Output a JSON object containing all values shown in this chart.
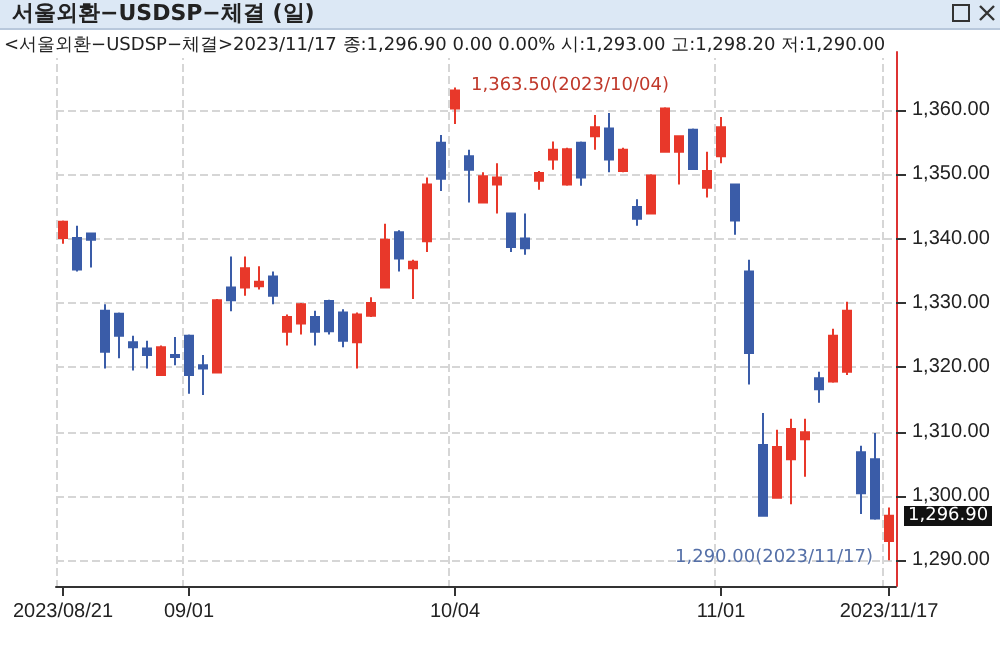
{
  "chart_data": {
    "type": "candlestick",
    "title": "서울외환−USDSP−체결 (일)",
    "subtitle": "<서울외환−USDSP−체결>2023/11/17 종:1,296.90 0.00 0.00% 시:1,293.00 고:1,298.20 저:1,290.00",
    "categories": [
      "2023/08/21",
      null,
      null,
      null,
      null,
      null,
      null,
      null,
      null,
      "09/01",
      null,
      null,
      null,
      null,
      null,
      null,
      null,
      null,
      null,
      null,
      null,
      null,
      null,
      null,
      null,
      null,
      null,
      null,
      "10/04",
      null,
      null,
      null,
      null,
      null,
      null,
      null,
      null,
      null,
      null,
      null,
      null,
      null,
      null,
      null,
      null,
      null,
      null,
      "11/01",
      null,
      null,
      null,
      null,
      null,
      null,
      null,
      null,
      null,
      null,
      null,
      "2023/11/17"
    ],
    "ohlc": [
      [
        1340.1,
        1342.8,
        1339.2,
        1342.6
      ],
      [
        1340.1,
        1342.0,
        1334.9,
        1335.2
      ],
      [
        1340.8,
        1340.8,
        1335.5,
        1339.8
      ],
      [
        1328.8,
        1329.8,
        1319.8,
        1322.4
      ],
      [
        1328.3,
        1328.5,
        1321.4,
        1324.9
      ],
      [
        1323.9,
        1324.9,
        1319.5,
        1323.1
      ],
      [
        1322.9,
        1324.1,
        1319.8,
        1321.9
      ],
      [
        1318.8,
        1323.4,
        1318.8,
        1323.1
      ],
      [
        1321.9,
        1324.7,
        1320.3,
        1321.6
      ],
      [
        1324.9,
        1325.1,
        1315.9,
        1318.8
      ],
      [
        1320.3,
        1321.9,
        1315.7,
        1319.8
      ],
      [
        1319.2,
        1330.6,
        1319.2,
        1330.4
      ],
      [
        1332.4,
        1337.2,
        1328.7,
        1330.4
      ],
      [
        1332.4,
        1337.2,
        1331.1,
        1335.4
      ],
      [
        1332.6,
        1335.7,
        1332.1,
        1333.3
      ],
      [
        1334.1,
        1334.9,
        1329.8,
        1331.1
      ],
      [
        1325.5,
        1328.2,
        1323.4,
        1327.8
      ],
      [
        1326.8,
        1330.0,
        1325.1,
        1329.8
      ],
      [
        1327.8,
        1328.8,
        1323.4,
        1325.5
      ],
      [
        1330.3,
        1330.5,
        1325.1,
        1325.6
      ],
      [
        1328.5,
        1329.0,
        1323.1,
        1324.1
      ],
      [
        1323.9,
        1328.5,
        1319.8,
        1328.2
      ],
      [
        1328.0,
        1330.9,
        1327.8,
        1330.0
      ],
      [
        1332.4,
        1342.3,
        1332.4,
        1339.8
      ],
      [
        1341.0,
        1341.3,
        1334.9,
        1336.9
      ],
      [
        1335.4,
        1336.7,
        1330.6,
        1336.4
      ],
      [
        1339.6,
        1349.5,
        1337.9,
        1348.4
      ],
      [
        1354.9,
        1356.1,
        1347.4,
        1349.3
      ],
      [
        1360.2,
        1363.5,
        1357.8,
        1363.0
      ],
      [
        1352.8,
        1353.8,
        1345.6,
        1350.7
      ],
      [
        1345.6,
        1350.3,
        1345.6,
        1349.7
      ],
      [
        1348.4,
        1351.7,
        1343.9,
        1349.5
      ],
      [
        1343.9,
        1343.9,
        1337.9,
        1338.7
      ],
      [
        1340.0,
        1343.9,
        1337.5,
        1338.5
      ],
      [
        1349.0,
        1350.5,
        1347.6,
        1350.2
      ],
      [
        1352.3,
        1355.1,
        1350.7,
        1353.8
      ],
      [
        1348.4,
        1354.1,
        1348.2,
        1353.9
      ],
      [
        1354.9,
        1355.1,
        1348.2,
        1349.5
      ],
      [
        1355.9,
        1359.2,
        1353.8,
        1357.3
      ],
      [
        1357.1,
        1359.5,
        1350.3,
        1352.3
      ],
      [
        1350.5,
        1354.1,
        1350.3,
        1353.8
      ],
      [
        1344.9,
        1346.1,
        1342.0,
        1343.1
      ],
      [
        1343.9,
        1350.0,
        1343.9,
        1349.8
      ],
      [
        1353.5,
        1360.4,
        1353.5,
        1360.2
      ],
      [
        1353.5,
        1355.9,
        1348.4,
        1355.9
      ],
      [
        1356.9,
        1357.1,
        1350.7,
        1350.8
      ],
      [
        1347.9,
        1353.5,
        1346.4,
        1350.5
      ],
      [
        1352.8,
        1358.9,
        1351.7,
        1357.3
      ],
      [
        1348.4,
        1348.4,
        1340.6,
        1342.8
      ],
      [
        1334.9,
        1336.7,
        1317.3,
        1322.2
      ],
      [
        1307.9,
        1312.9,
        1296.9,
        1296.9
      ],
      [
        1299.7,
        1310.3,
        1299.7,
        1307.6
      ],
      [
        1305.7,
        1312.0,
        1298.7,
        1310.4
      ],
      [
        1308.8,
        1312.0,
        1303.0,
        1309.9
      ],
      [
        1318.3,
        1319.3,
        1314.5,
        1316.6
      ],
      [
        1317.8,
        1326.0,
        1317.6,
        1324.9
      ],
      [
        1319.3,
        1330.2,
        1318.8,
        1328.8
      ],
      [
        1306.8,
        1307.8,
        1297.2,
        1300.4
      ],
      [
        1305.7,
        1309.8,
        1296.3,
        1296.5
      ],
      [
        1293.0,
        1298.2,
        1290.0,
        1296.9
      ]
    ],
    "colors": [
      "#e8382a",
      "#3a5ca8",
      "#3a5ca8",
      "#3a5ca8",
      "#3a5ca8",
      "#3a5ca8",
      "#3a5ca8",
      "#e8382a",
      "#3a5ca8",
      "#3a5ca8",
      "#3a5ca8",
      "#e8382a",
      "#3a5ca8",
      "#e8382a",
      "#e8382a",
      "#3a5ca8",
      "#e8382a",
      "#e8382a",
      "#3a5ca8",
      "#3a5ca8",
      "#3a5ca8",
      "#e8382a",
      "#e8382a",
      "#e8382a",
      "#3a5ca8",
      "#e8382a",
      "#e8382a",
      "#3a5ca8",
      "#e8382a",
      "#3a5ca8",
      "#e8382a",
      "#e8382a",
      "#3a5ca8",
      "#3a5ca8",
      "#e8382a",
      "#e8382a",
      "#e8382a",
      "#3a5ca8",
      "#e8382a",
      "#3a5ca8",
      "#e8382a",
      "#3a5ca8",
      "#e8382a",
      "#e8382a",
      "#e8382a",
      "#3a5ca8",
      "#e8382a",
      "#e8382a",
      "#3a5ca8",
      "#3a5ca8",
      "#3a5ca8",
      "#e8382a",
      "#e8382a",
      "#e8382a",
      "#3a5ca8",
      "#e8382a",
      "#e8382a",
      "#3a5ca8",
      "#3a5ca8",
      "#e8382a"
    ],
    "ylim": [
      1286,
      1369
    ],
    "yticks": [
      {
        "value": 1290,
        "label": "1,290.00"
      },
      {
        "value": 1300,
        "label": "1,300.00"
      },
      {
        "value": 1310,
        "label": "1,310.00"
      },
      {
        "value": 1320,
        "label": "1,320.00"
      },
      {
        "value": 1330,
        "label": "1,330.00"
      },
      {
        "value": 1340,
        "label": "1,340.00"
      },
      {
        "value": 1350,
        "label": "1,350.00"
      },
      {
        "value": 1360,
        "label": "1,360.00"
      }
    ],
    "grid": true,
    "annotations": [
      {
        "text": "1,363.50(2023/10/04)",
        "x": "10/04",
        "y": 1363.5
      },
      {
        "text": "1,290.00(2023/11/17)",
        "x": "2023/11/17",
        "y": 1290
      },
      "1,296.90"
    ]
  }
}
